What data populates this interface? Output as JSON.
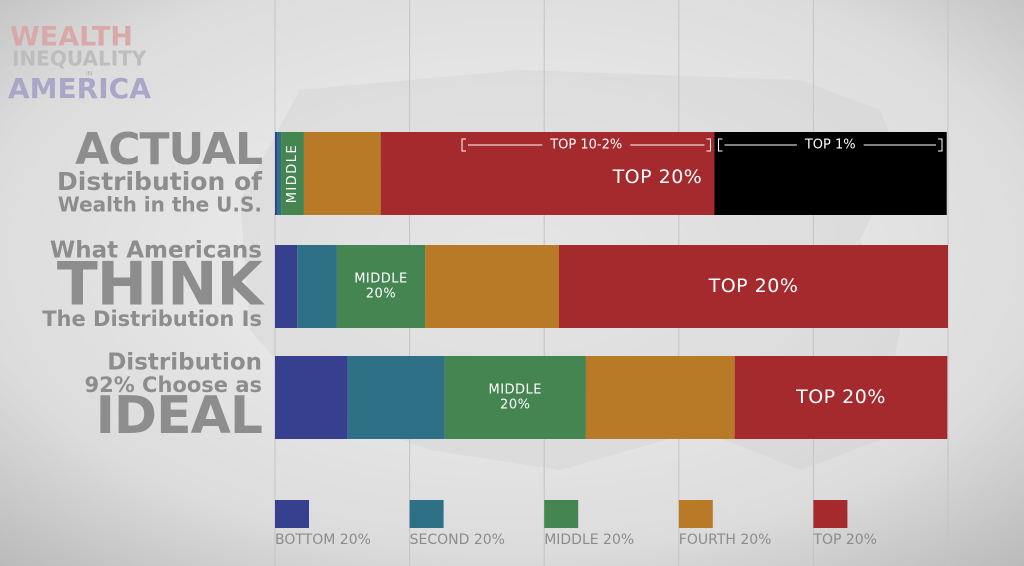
{
  "chart_data": {
    "type": "stacked_bar",
    "title": [
      "WEALTH",
      "INEQUALITY",
      "IN",
      "AMERICA"
    ],
    "categories": [
      [
        "ACTUAL",
        "Distribution of",
        "Wealth in the U.S."
      ],
      [
        "What Americans",
        "THINK",
        "The Distribution Is"
      ],
      [
        "Distribution",
        "92% Choose as",
        "IDEAL"
      ]
    ],
    "series": [
      {
        "name": "BOTTOM 20%",
        "color": "#373f8f",
        "values": [
          0.3,
          3.3,
          10.8
        ]
      },
      {
        "name": "SECOND 20%",
        "color": "#2e7086",
        "values": [
          0.6,
          5.9,
          14.4
        ]
      },
      {
        "name": "MIDDLE 20%",
        "color": "#448552",
        "values": [
          3.4,
          13.1,
          21.0
        ],
        "segment_labels": [
          [
            "MIDDLE"
          ],
          [
            "MIDDLE",
            "20%"
          ],
          [
            "MIDDLE",
            "20%"
          ]
        ]
      },
      {
        "name": "FOURTH 20%",
        "color": "#b87a27",
        "values": [
          11.4,
          19.9,
          22.1
        ]
      },
      {
        "name": "TOP 20%",
        "color": "#a52a2e",
        "values": [
          84.1,
          57.8,
          31.6
        ],
        "segment_labels": [
          [
            "TOP 20%"
          ],
          [
            "TOP 20%"
          ],
          [
            "TOP 20%"
          ]
        ]
      }
    ],
    "overlay": {
      "name": "TOP 1%",
      "color": "#000000",
      "value": 34.5
    },
    "bracket_label": "TOP 10-2%",
    "xlim": [
      0,
      100
    ],
    "xticks": [
      0,
      20,
      40,
      60,
      80,
      100
    ],
    "grid": true
  }
}
